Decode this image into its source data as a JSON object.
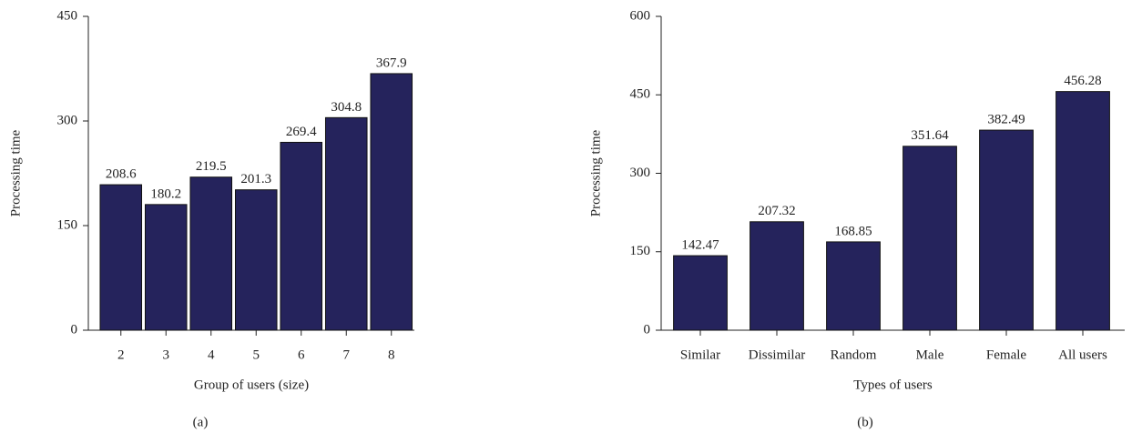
{
  "chart_data": [
    {
      "type": "bar",
      "caption": "(a)",
      "xlabel": "Group of users (size)",
      "ylabel": "Processing time",
      "categories": [
        "2",
        "3",
        "4",
        "5",
        "6",
        "7",
        "8"
      ],
      "values": [
        208.6,
        180.2,
        219.5,
        201.3,
        269.4,
        304.8,
        367.9
      ],
      "color": "#25235c",
      "ylim": [
        0,
        450
      ],
      "yticks": [
        0,
        150,
        300,
        450
      ]
    },
    {
      "type": "bar",
      "caption": "(b)",
      "xlabel": "Types of users",
      "ylabel": "Processing time",
      "categories": [
        "Similar",
        "Dissimilar",
        "Random",
        "Male",
        "Female",
        "All users"
      ],
      "values": [
        142.47,
        207.32,
        168.85,
        351.64,
        382.49,
        456.28
      ],
      "color": "#25235c",
      "ylim": [
        0,
        600
      ],
      "yticks": [
        0,
        150,
        300,
        450,
        600
      ]
    }
  ]
}
